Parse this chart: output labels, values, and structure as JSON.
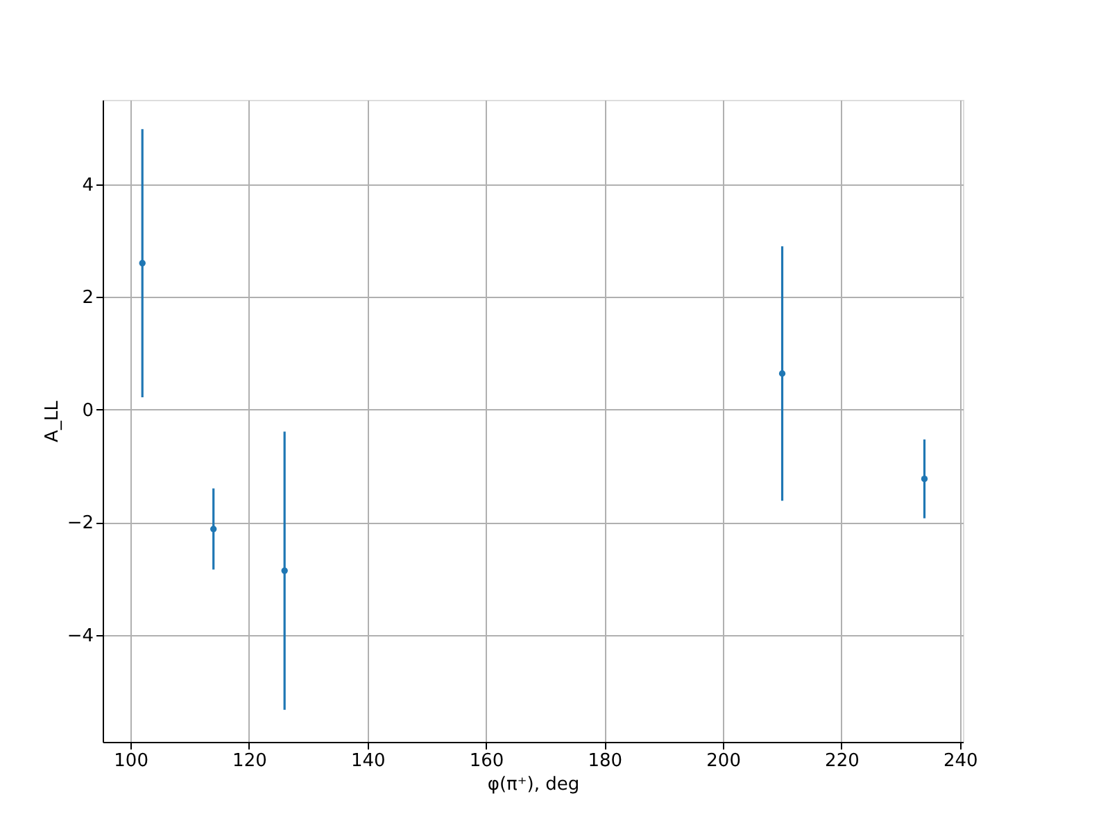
{
  "chart_data": {
    "type": "scatter",
    "xlabel": "φ(π⁺), deg",
    "ylabel": "A_LL",
    "x": [
      102,
      114,
      126,
      210,
      234
    ],
    "series": [
      {
        "color": "#1f77b4",
        "values": [
          2.6,
          -2.12,
          -2.86,
          0.64,
          -1.23
        ],
        "errors": [
          2.38,
          0.72,
          2.47,
          2.26,
          0.7
        ]
      }
    ],
    "xlim": [
      95.3,
      240.5
    ],
    "ylim": [
      -5.9,
      5.5
    ],
    "xticks": [
      100,
      120,
      140,
      160,
      180,
      200,
      220,
      240
    ],
    "yticks": [
      {
        "value": -4,
        "label": "−4"
      },
      {
        "value": -2,
        "label": "−2"
      },
      0,
      2,
      4
    ],
    "grid": true,
    "marker": "circle"
  }
}
